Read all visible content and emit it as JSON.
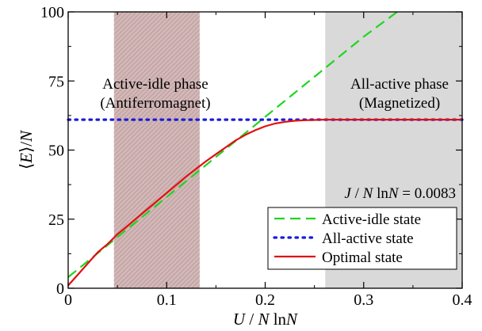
{
  "chart_data": {
    "type": "line",
    "xlabel_parts": [
      "U",
      " / ",
      "N",
      " ln",
      "N"
    ],
    "ylabel_parts": [
      "⟨",
      "E",
      "⟩/",
      "N"
    ],
    "xlim": [
      0,
      0.4
    ],
    "ylim": [
      0,
      100
    ],
    "x_ticks": [
      0,
      0.1,
      0.2,
      0.3,
      0.4
    ],
    "x_tick_labels": [
      "0",
      "0.1",
      "0.2",
      "0.3",
      "0.4"
    ],
    "y_ticks": [
      0,
      25,
      50,
      75,
      100
    ],
    "y_tick_labels": [
      "0",
      "25",
      "50",
      "75",
      "100"
    ],
    "shaded_regions": [
      {
        "x": [
          0.0465,
          0.1335
        ],
        "color": "#c8a8a8",
        "pattern": "hatched",
        "label_lines": [
          "Active-idle phase",
          "(Antiferromagnet)"
        ]
      },
      {
        "x": [
          0.261,
          0.4
        ],
        "color": "#d9d9d9",
        "pattern": "solid",
        "label_lines": [
          "All-active phase",
          "(Magnetized)"
        ]
      }
    ],
    "annotation_parts": [
      "J",
      " / ",
      "N",
      " ln",
      "N",
      " = 0.0083"
    ],
    "series": [
      {
        "name": "Active-idle state",
        "color": "#1fd51f",
        "style": "dashed",
        "x": [
          0,
          0.1,
          0.2,
          0.3,
          0.334
        ],
        "y": [
          4,
          33,
          62,
          91,
          100
        ]
      },
      {
        "name": "All-active state",
        "color": "#1a1adb",
        "style": "dotted",
        "x": [
          0,
          0.4
        ],
        "y": [
          61,
          61
        ]
      },
      {
        "name": "Optimal state",
        "color": "#e01010",
        "style": "solid",
        "x": [
          0,
          0.01,
          0.02,
          0.03,
          0.04,
          0.05,
          0.06,
          0.08,
          0.1,
          0.12,
          0.14,
          0.15,
          0.16,
          0.17,
          0.18,
          0.19,
          0.2,
          0.21,
          0.22,
          0.23,
          0.24,
          0.25,
          0.26,
          0.28,
          0.3,
          0.35,
          0.4
        ],
        "y": [
          1,
          5,
          9,
          13,
          16,
          19.5,
          22.5,
          28.5,
          34.5,
          40.5,
          46,
          48.5,
          51,
          53.5,
          55.5,
          57.2,
          58.6,
          59.6,
          60.2,
          60.6,
          60.8,
          60.9,
          61,
          61,
          61,
          61,
          61
        ]
      }
    ],
    "legend_position": "bottom-right",
    "grid": false
  }
}
